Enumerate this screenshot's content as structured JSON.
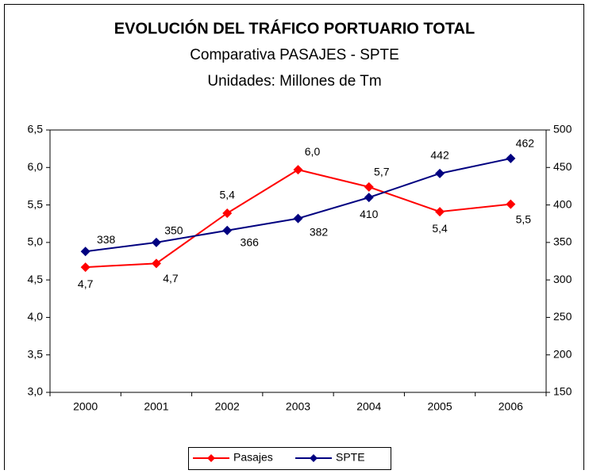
{
  "chart_data": {
    "type": "line",
    "title": "EVOLUCIÓN DEL TRÁFICO PORTUARIO TOTAL",
    "subtitle": "Comparativa PASAJES - SPTE",
    "subtitle2": "Unidades: Millones de Tm",
    "categories": [
      "2000",
      "2001",
      "2002",
      "2003",
      "2004",
      "2005",
      "2006"
    ],
    "series": [
      {
        "name": "Pasajes",
        "color": "#ff0000",
        "values": [
          4.67,
          4.72,
          5.39,
          5.97,
          5.74,
          5.41,
          5.51
        ],
        "value_labels": [
          "4,7",
          "4,7",
          "5,4",
          "6,0",
          "5,7",
          "5,4",
          "5,5"
        ]
      },
      {
        "name": "SPTE",
        "color": "#000080",
        "axis": "y2",
        "values": [
          338,
          350,
          366,
          382,
          410,
          442,
          462
        ]
      }
    ],
    "ylim": [
      3.0,
      6.5
    ],
    "yticks": [
      {
        "value": 3.0,
        "label": "3,0"
      },
      {
        "value": 3.5,
        "label": "3,5"
      },
      {
        "value": 4.0,
        "label": "4,0"
      },
      {
        "value": 4.5,
        "label": "4,5"
      },
      {
        "value": 5.0,
        "label": "5,0"
      },
      {
        "value": 5.5,
        "label": "5,5"
      },
      {
        "value": 6.0,
        "label": "6,0"
      },
      {
        "value": 6.5,
        "label": "6,5"
      }
    ],
    "y2lim": [
      150,
      500
    ],
    "y2ticks": [
      150,
      200,
      250,
      300,
      350,
      400,
      450,
      500
    ],
    "grid": false,
    "legend": "bottom"
  }
}
